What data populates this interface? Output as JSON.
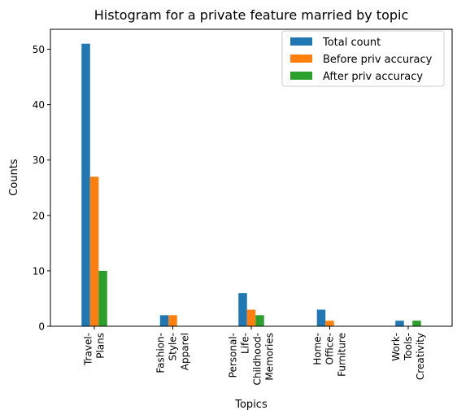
{
  "chart_data": {
    "type": "bar",
    "title": "Histogram for a private feature married by topic",
    "xlabel": "Topics",
    "ylabel": "Counts",
    "ylim": [
      0,
      53.6
    ],
    "yticks": [
      0,
      10,
      20,
      30,
      40,
      50
    ],
    "categories": [
      [
        "Travel-",
        "Plans"
      ],
      [
        "Fashion-",
        "Style-",
        "Apparel"
      ],
      [
        "Personal-",
        "Life-",
        "Childhood-",
        "Memories"
      ],
      [
        "Home-",
        "Office-",
        "Furniture"
      ],
      [
        "Work-",
        "Tools-",
        "Creativity"
      ]
    ],
    "series": [
      {
        "name": "Total count",
        "color": "#1f77b4",
        "values": [
          51,
          2,
          6,
          3,
          1
        ]
      },
      {
        "name": "Before priv accuracy",
        "color": "#ff7f0e",
        "values": [
          27,
          2,
          3,
          1,
          0
        ]
      },
      {
        "name": "After priv accuracy",
        "color": "#2ca02c",
        "values": [
          10,
          0,
          2,
          0,
          1
        ]
      }
    ],
    "legend": "top-right",
    "grid": false
  }
}
